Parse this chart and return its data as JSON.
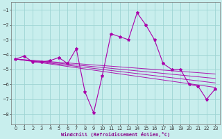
{
  "xlabel": "Windchill (Refroidissement éolien,°C)",
  "ylabel": "",
  "xlim": [
    -0.5,
    23.5
  ],
  "ylim": [
    -8.7,
    -0.5
  ],
  "yticks": [
    -8,
    -7,
    -6,
    -5,
    -4,
    -3,
    -2,
    -1
  ],
  "xticks": [
    0,
    1,
    2,
    3,
    4,
    5,
    6,
    7,
    8,
    9,
    10,
    11,
    12,
    13,
    14,
    15,
    16,
    17,
    18,
    19,
    20,
    21,
    22,
    23
  ],
  "bg_color": "#c8eeed",
  "grid_color": "#9dd4d3",
  "line_color": "#aa00aa",
  "line_width": 0.8,
  "marker": "*",
  "marker_size": 3,
  "series_x": [
    0,
    1,
    2,
    3,
    4,
    5,
    6,
    7,
    8,
    9,
    10,
    11,
    12,
    13,
    14,
    15,
    16,
    17,
    18,
    19,
    20,
    21,
    22,
    23
  ],
  "series_y": [
    -4.3,
    -4.1,
    -4.5,
    -4.5,
    -4.4,
    -4.2,
    -4.6,
    -3.6,
    -6.5,
    -7.9,
    -5.4,
    -2.6,
    -2.8,
    -3.0,
    -1.2,
    -2.0,
    -3.0,
    -4.6,
    -5.0,
    -5.0,
    -6.0,
    -6.1,
    -7.0,
    -6.3
  ],
  "trend_lines": [
    {
      "x": [
        0,
        23
      ],
      "y": [
        -4.3,
        -5.3
      ]
    },
    {
      "x": [
        0,
        23
      ],
      "y": [
        -4.3,
        -5.6
      ]
    },
    {
      "x": [
        0,
        23
      ],
      "y": [
        -4.3,
        -5.9
      ]
    },
    {
      "x": [
        0,
        23
      ],
      "y": [
        -4.3,
        -6.2
      ]
    }
  ],
  "xlabel_color": "#880088",
  "xlabel_fontsize": 5.0,
  "tick_fontsize": 4.8,
  "tick_color": "#333333"
}
